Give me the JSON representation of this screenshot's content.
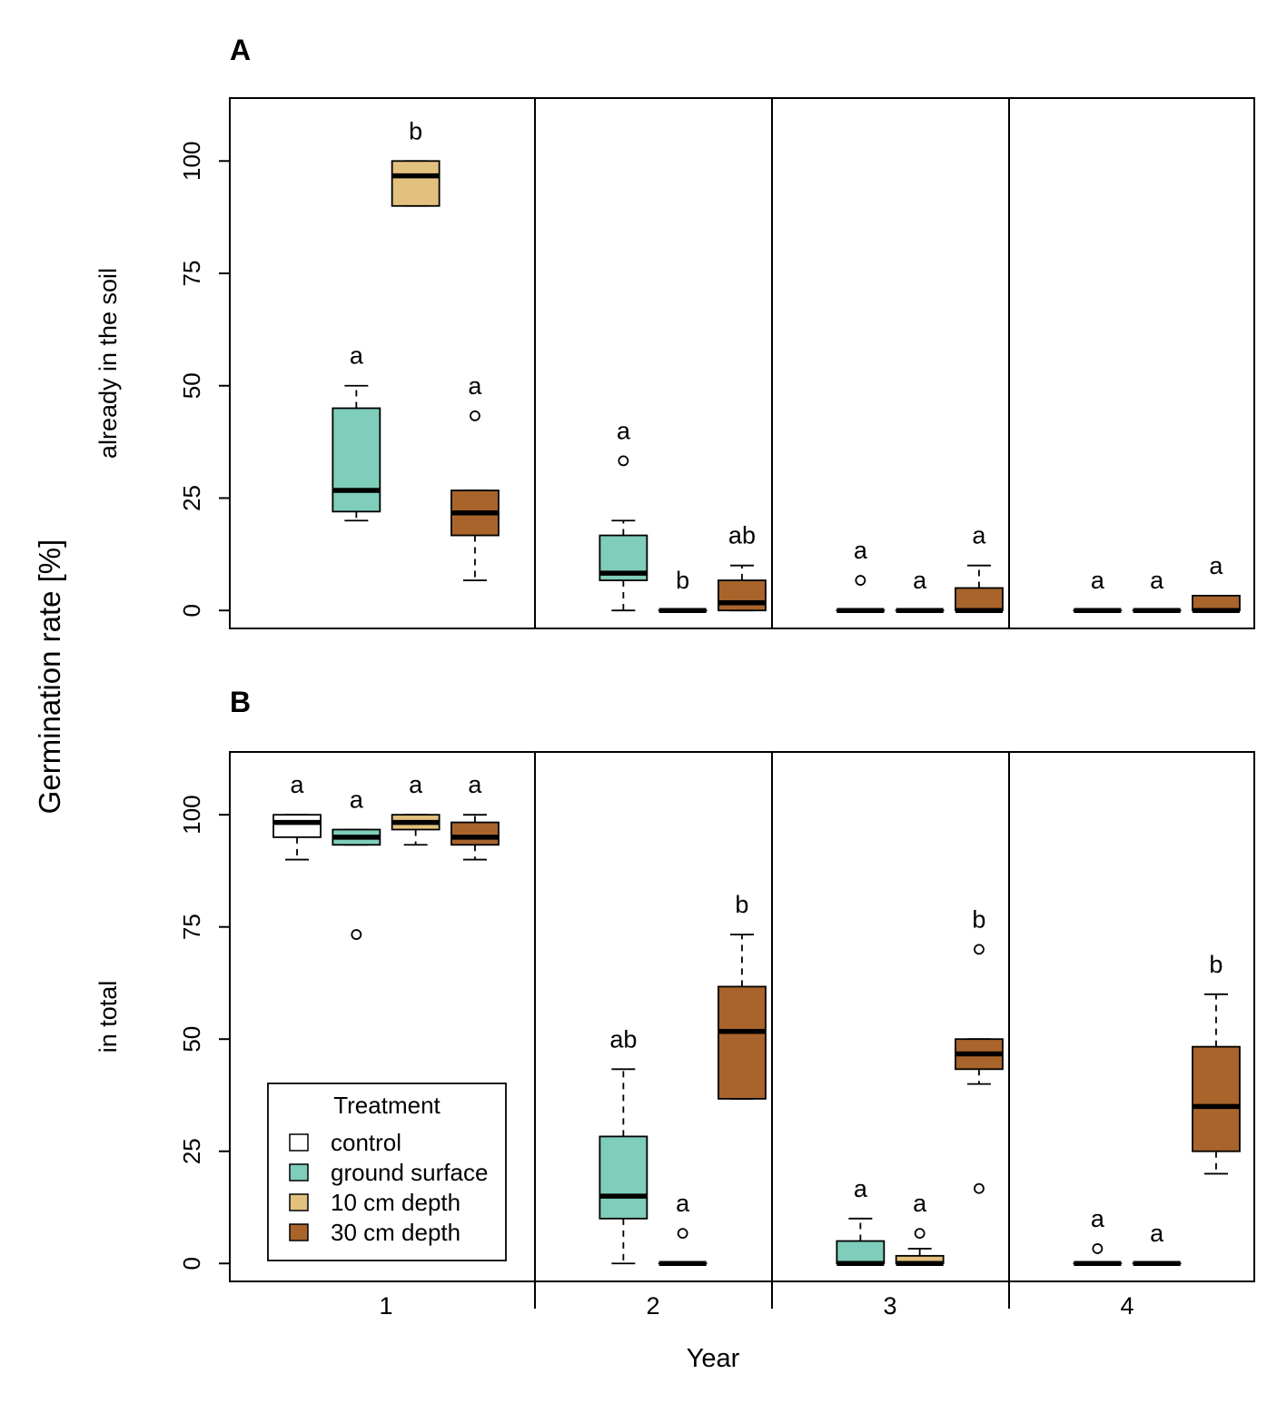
{
  "figure": {
    "ylabel": "Germination rate [%]",
    "xlabel": "Year"
  },
  "colors": {
    "control": "#ffffff",
    "ground surface": "#7fcdbb",
    "10 cm depth": "#e2c17e",
    "30 cm depth": "#a9642b"
  },
  "legend": {
    "title": "Treatment",
    "placement": "bottom-left of panel B",
    "entries": [
      "control",
      "ground surface",
      "10 cm depth",
      "30 cm depth"
    ]
  },
  "chart_data": [
    {
      "type": "box",
      "panel_label": "A",
      "ylabel": "already in the soil",
      "categories": [
        "1",
        "2",
        "3",
        "4"
      ],
      "yticks": [
        0,
        25,
        50,
        75,
        100
      ],
      "ylim": [
        -4,
        114
      ],
      "boxes": [
        {
          "year": "1",
          "treatment": "ground surface",
          "min": 20,
          "q1": 22,
          "median": 26.7,
          "q3": 45,
          "max": 50,
          "outliers": [],
          "letter": "a"
        },
        {
          "year": "1",
          "treatment": "10 cm depth",
          "min": 90,
          "q1": 90,
          "median": 96.7,
          "q3": 100,
          "max": 100,
          "outliers": [],
          "letter": "b"
        },
        {
          "year": "1",
          "treatment": "30 cm depth",
          "min": 6.7,
          "q1": 16.7,
          "median": 21.7,
          "q3": 26.7,
          "max": 26.7,
          "outliers": [
            43.3
          ],
          "letter": "a"
        },
        {
          "year": "2",
          "treatment": "ground surface",
          "min": 0,
          "q1": 6.7,
          "median": 8.3,
          "q3": 16.7,
          "max": 20,
          "outliers": [
            33.3
          ],
          "letter": "a"
        },
        {
          "year": "2",
          "treatment": "10 cm depth",
          "min": 0,
          "q1": 0,
          "median": 0,
          "q3": 0,
          "max": 0,
          "outliers": [],
          "letter": "b"
        },
        {
          "year": "2",
          "treatment": "30 cm depth",
          "min": 0,
          "q1": 0,
          "median": 1.7,
          "q3": 6.7,
          "max": 10,
          "outliers": [],
          "letter": "ab"
        },
        {
          "year": "3",
          "treatment": "ground surface",
          "min": 0,
          "q1": 0,
          "median": 0,
          "q3": 0,
          "max": 0,
          "outliers": [
            6.7
          ],
          "letter": "a"
        },
        {
          "year": "3",
          "treatment": "10 cm depth",
          "min": 0,
          "q1": 0,
          "median": 0,
          "q3": 0,
          "max": 0,
          "outliers": [],
          "letter": "a"
        },
        {
          "year": "3",
          "treatment": "30 cm depth",
          "min": 0,
          "q1": 0,
          "median": 0,
          "q3": 5,
          "max": 10,
          "outliers": [],
          "letter": "a"
        },
        {
          "year": "4",
          "treatment": "ground surface",
          "min": 0,
          "q1": 0,
          "median": 0,
          "q3": 0,
          "max": 0,
          "outliers": [],
          "letter": "a"
        },
        {
          "year": "4",
          "treatment": "10 cm depth",
          "min": 0,
          "q1": 0,
          "median": 0,
          "q3": 0,
          "max": 0,
          "outliers": [],
          "letter": "a"
        },
        {
          "year": "4",
          "treatment": "30 cm depth",
          "min": 0,
          "q1": 0,
          "median": 0,
          "q3": 3.3,
          "max": 3.3,
          "outliers": [],
          "letter": "a"
        }
      ]
    },
    {
      "type": "box",
      "panel_label": "B",
      "ylabel": "in total",
      "categories": [
        "1",
        "2",
        "3",
        "4"
      ],
      "yticks": [
        0,
        25,
        50,
        75,
        100
      ],
      "ylim": [
        -4,
        114
      ],
      "boxes": [
        {
          "year": "1",
          "treatment": "control",
          "min": 90,
          "q1": 95,
          "median": 98.3,
          "q3": 100,
          "max": 100,
          "outliers": [],
          "letter": "a"
        },
        {
          "year": "1",
          "treatment": "ground surface",
          "min": 93.3,
          "q1": 93.3,
          "median": 95,
          "q3": 96.7,
          "max": 96.7,
          "outliers": [
            73.3
          ],
          "letter": "a"
        },
        {
          "year": "1",
          "treatment": "10 cm depth",
          "min": 93.3,
          "q1": 96.7,
          "median": 98.3,
          "q3": 100,
          "max": 100,
          "outliers": [],
          "letter": "a"
        },
        {
          "year": "1",
          "treatment": "30 cm depth",
          "min": 90,
          "q1": 93.3,
          "median": 95,
          "q3": 98.3,
          "max": 100,
          "outliers": [],
          "letter": "a"
        },
        {
          "year": "2",
          "treatment": "ground surface",
          "min": 0,
          "q1": 10,
          "median": 15,
          "q3": 28.3,
          "max": 43.3,
          "outliers": [],
          "letter": "ab"
        },
        {
          "year": "2",
          "treatment": "10 cm depth",
          "min": 0,
          "q1": 0,
          "median": 0,
          "q3": 0,
          "max": 0,
          "outliers": [
            6.7
          ],
          "letter": "a"
        },
        {
          "year": "2",
          "treatment": "30 cm depth",
          "min": 36.7,
          "q1": 36.7,
          "median": 51.7,
          "q3": 61.7,
          "max": 73.3,
          "outliers": [],
          "letter": "b"
        },
        {
          "year": "3",
          "treatment": "ground surface",
          "min": 0,
          "q1": 0,
          "median": 0,
          "q3": 5,
          "max": 10,
          "outliers": [],
          "letter": "a"
        },
        {
          "year": "3",
          "treatment": "10 cm depth",
          "min": 0,
          "q1": 0,
          "median": 0,
          "q3": 1.7,
          "max": 3.3,
          "outliers": [
            6.7
          ],
          "letter": "a"
        },
        {
          "year": "3",
          "treatment": "30 cm depth",
          "min": 40,
          "q1": 43.3,
          "median": 46.7,
          "q3": 50,
          "max": 50,
          "outliers": [
            70,
            16.7
          ],
          "letter": "b"
        },
        {
          "year": "4",
          "treatment": "ground surface",
          "min": 0,
          "q1": 0,
          "median": 0,
          "q3": 0,
          "max": 0,
          "outliers": [
            3.3
          ],
          "letter": "a"
        },
        {
          "year": "4",
          "treatment": "10 cm depth",
          "min": 0,
          "q1": 0,
          "median": 0,
          "q3": 0,
          "max": 0,
          "outliers": [],
          "letter": "a"
        },
        {
          "year": "4",
          "treatment": "30 cm depth",
          "min": 20,
          "q1": 25,
          "median": 35,
          "q3": 48.3,
          "max": 60,
          "outliers": [],
          "letter": "b"
        }
      ]
    }
  ]
}
